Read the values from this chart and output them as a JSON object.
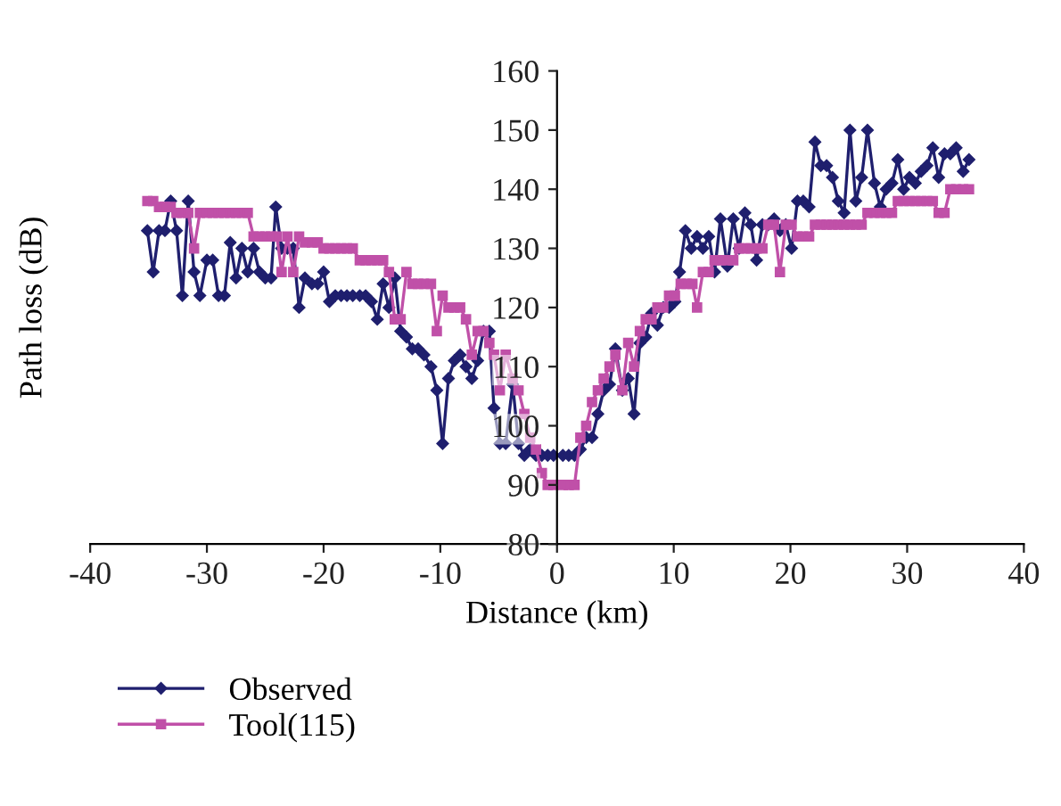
{
  "chart_data": {
    "type": "line",
    "xlabel": "Distance (km)",
    "ylabel": "Path loss (dB)",
    "xlim": [
      -40,
      40
    ],
    "ylim": [
      80,
      160
    ],
    "xticks": [
      -40,
      -30,
      -20,
      -10,
      0,
      10,
      20,
      30,
      40
    ],
    "yticks": [
      80,
      90,
      100,
      110,
      120,
      130,
      140,
      150,
      160
    ],
    "grid": false,
    "legend": "bottom left",
    "series": [
      {
        "name": "Observed",
        "color": "#1f1f6e",
        "marker": "diamond",
        "x": [
          -35.1,
          -34.6,
          -34.1,
          -33.6,
          -33.1,
          -32.6,
          -32.1,
          -31.6,
          -31.1,
          -30.6,
          -30.0,
          -29.5,
          -29.0,
          -28.5,
          -28.0,
          -27.5,
          -27.0,
          -26.5,
          -26.0,
          -25.5,
          -25.0,
          -24.5,
          -24.1,
          -23.6,
          -23.1,
          -22.6,
          -22.1,
          -21.6,
          -21.0,
          -20.5,
          -20.0,
          -19.5,
          -19.0,
          -18.5,
          -18.0,
          -17.5,
          -16.9,
          -16.4,
          -15.9,
          -15.4,
          -14.9,
          -14.4,
          -13.9,
          -13.4,
          -12.9,
          -12.4,
          -11.9,
          -11.4,
          -10.8,
          -10.3,
          -9.8,
          -9.3,
          -8.8,
          -8.3,
          -7.8,
          -7.3,
          -6.8,
          -6.3,
          -5.8,
          -5.4,
          -4.9,
          -4.4,
          -3.8,
          -3.3,
          -2.8,
          -2.3,
          -1.8,
          -1.3,
          -0.8,
          -0.3,
          0.5,
          1.0,
          1.5,
          2.0,
          2.5,
          3.0,
          3.5,
          4.0,
          4.5,
          5.0,
          5.6,
          6.1,
          6.6,
          7.1,
          7.6,
          8.1,
          8.6,
          9.1,
          9.6,
          10.1,
          10.5,
          11.0,
          11.5,
          12.0,
          12.5,
          13.0,
          13.5,
          14.0,
          14.6,
          15.1,
          15.6,
          16.1,
          16.6,
          17.1,
          17.6,
          18.1,
          18.6,
          19.1,
          19.6,
          20.1,
          20.6,
          21.1,
          21.6,
          22.1,
          22.6,
          23.1,
          23.6,
          24.1,
          24.6,
          25.1,
          25.6,
          26.1,
          26.6,
          27.2,
          27.7,
          28.2,
          28.7,
          29.2,
          29.7,
          30.2,
          30.7,
          31.2,
          31.7,
          32.2,
          32.7,
          33.2,
          33.7,
          34.2,
          34.8,
          35.3
        ],
        "values": [
          133,
          126,
          133,
          133,
          138,
          133,
          122,
          138,
          126,
          122,
          128,
          128,
          122,
          122,
          131,
          125,
          130,
          126,
          130,
          126,
          125,
          125,
          137,
          130,
          130,
          130,
          120,
          125,
          124,
          124,
          126,
          121,
          122,
          122,
          122,
          122,
          122,
          122,
          121,
          118,
          124,
          120,
          125,
          116,
          115,
          113,
          113,
          112,
          110,
          106,
          97,
          108,
          111,
          112,
          110,
          108,
          111,
          116,
          116,
          103,
          97,
          97,
          107,
          97,
          95,
          96,
          95,
          95,
          95,
          95,
          95,
          95,
          95,
          96,
          98,
          98,
          102,
          106,
          107,
          113,
          106,
          108,
          102,
          114,
          115,
          119,
          117,
          120,
          120,
          121,
          126,
          133,
          130,
          132,
          130,
          132,
          126,
          135,
          127,
          135,
          130,
          136,
          134,
          128,
          134,
          134,
          135,
          133,
          134,
          130,
          138,
          138,
          137,
          148,
          144,
          144,
          142,
          138,
          136,
          150,
          138,
          142,
          150,
          141,
          137,
          140,
          141,
          145,
          140,
          142,
          141,
          143,
          144,
          147,
          142,
          146,
          146,
          147,
          143,
          145
        ]
      },
      {
        "name": "Tool(115)",
        "color": "#c050a8",
        "marker": "square",
        "x": [
          -35.1,
          -34.6,
          -34.1,
          -33.6,
          -33.1,
          -32.6,
          -32.1,
          -31.6,
          -31.1,
          -30.6,
          -30.0,
          -29.5,
          -29.0,
          -28.5,
          -28.0,
          -27.5,
          -27.0,
          -26.5,
          -26.0,
          -25.5,
          -25.0,
          -24.5,
          -24.0,
          -23.6,
          -23.1,
          -22.6,
          -22.1,
          -21.6,
          -21.0,
          -20.5,
          -20.0,
          -19.5,
          -19.0,
          -18.5,
          -18.0,
          -17.5,
          -16.9,
          -16.4,
          -15.9,
          -15.4,
          -14.9,
          -14.4,
          -13.9,
          -13.4,
          -12.9,
          -12.4,
          -11.9,
          -11.4,
          -10.8,
          -10.3,
          -9.8,
          -9.3,
          -8.8,
          -8.3,
          -7.8,
          -7.3,
          -6.8,
          -6.3,
          -5.8,
          -5.4,
          -4.9,
          -4.4,
          -3.8,
          -3.3,
          -2.8,
          -2.3,
          -1.8,
          -1.3,
          -0.8,
          -0.3,
          0.5,
          1.0,
          1.5,
          2.0,
          2.5,
          3.0,
          3.5,
          4.0,
          4.5,
          5.0,
          5.6,
          6.1,
          6.6,
          7.1,
          7.6,
          8.1,
          8.6,
          9.1,
          9.6,
          10.1,
          10.6,
          11.1,
          11.6,
          12.0,
          12.5,
          13.0,
          13.5,
          14.0,
          14.6,
          15.1,
          15.6,
          16.1,
          16.6,
          17.1,
          17.6,
          18.1,
          18.6,
          19.1,
          19.6,
          20.1,
          20.6,
          21.1,
          21.6,
          22.1,
          22.6,
          23.1,
          23.6,
          24.1,
          24.6,
          25.1,
          25.6,
          26.1,
          26.6,
          27.2,
          27.7,
          28.2,
          28.7,
          29.2,
          29.7,
          30.2,
          30.7,
          31.2,
          31.7,
          32.2,
          32.7,
          33.2,
          33.7,
          34.2,
          34.8,
          35.3
        ],
        "values": [
          138,
          138,
          137,
          137,
          137,
          136,
          136,
          136,
          130,
          136,
          136,
          136,
          136,
          136,
          136,
          136,
          136,
          136,
          132,
          132,
          132,
          132,
          132,
          126,
          132,
          126,
          132,
          131,
          131,
          131,
          130,
          130,
          130,
          130,
          130,
          130,
          128,
          128,
          128,
          128,
          128,
          126,
          118,
          118,
          126,
          124,
          124,
          124,
          124,
          116,
          122,
          120,
          120,
          120,
          118,
          112,
          116,
          116,
          114,
          112,
          106,
          112,
          108,
          106,
          102,
          98,
          96,
          92,
          90,
          90,
          90,
          90,
          90,
          98,
          100,
          104,
          106,
          108,
          110,
          112,
          106,
          114,
          110,
          116,
          118,
          118,
          120,
          120,
          122,
          122,
          124,
          124,
          124,
          120,
          126,
          126,
          128,
          128,
          128,
          128,
          130,
          130,
          130,
          130,
          130,
          134,
          134,
          126,
          134,
          134,
          132,
          132,
          132,
          134,
          134,
          134,
          134,
          134,
          134,
          134,
          134,
          134,
          136,
          136,
          136,
          136,
          136,
          138,
          138,
          138,
          138,
          138,
          138,
          138,
          136,
          136,
          140,
          140,
          140,
          140
        ]
      }
    ]
  }
}
